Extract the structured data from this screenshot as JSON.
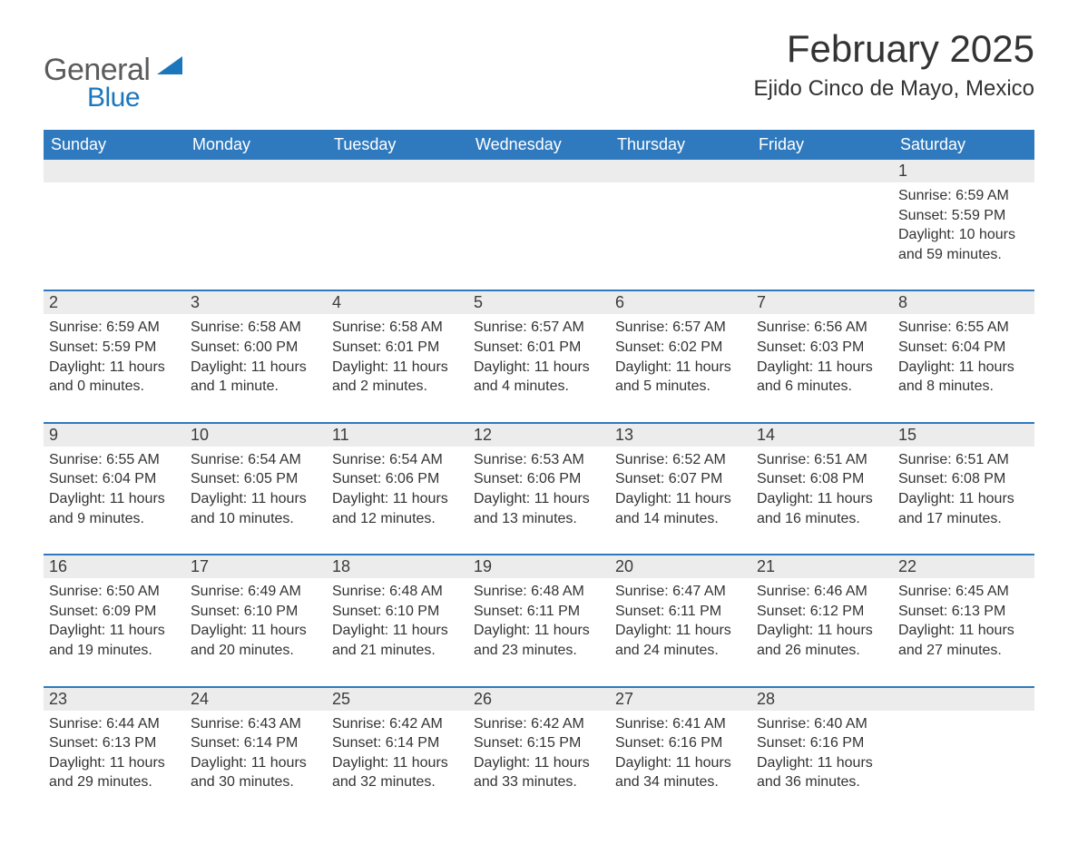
{
  "brand": {
    "general": "General",
    "blue": "Blue"
  },
  "colors": {
    "header_bg": "#2f7abf",
    "header_text": "#ffffff",
    "daynum_bg": "#ececec",
    "rule": "#2f7abf",
    "body_text": "#333333",
    "logo_gray": "#5b5b5b",
    "logo_blue": "#1b77bc",
    "background": "#ffffff"
  },
  "typography": {
    "month_title_pt": 42,
    "location_pt": 24,
    "dow_pt": 18,
    "daynum_pt": 18,
    "detail_pt": 16
  },
  "layout": {
    "columns": 7,
    "weeks": 5
  },
  "month_title": "February 2025",
  "location": "Ejido Cinco de Mayo, Mexico",
  "days_of_week": [
    "Sunday",
    "Monday",
    "Tuesday",
    "Wednesday",
    "Thursday",
    "Friday",
    "Saturday"
  ],
  "weeks": [
    [
      null,
      null,
      null,
      null,
      null,
      null,
      {
        "n": "1",
        "sunrise": "Sunrise: 6:59 AM",
        "sunset": "Sunset: 5:59 PM",
        "daylight": "Daylight: 10 hours and 59 minutes."
      }
    ],
    [
      {
        "n": "2",
        "sunrise": "Sunrise: 6:59 AM",
        "sunset": "Sunset: 5:59 PM",
        "daylight": "Daylight: 11 hours and 0 minutes."
      },
      {
        "n": "3",
        "sunrise": "Sunrise: 6:58 AM",
        "sunset": "Sunset: 6:00 PM",
        "daylight": "Daylight: 11 hours and 1 minute."
      },
      {
        "n": "4",
        "sunrise": "Sunrise: 6:58 AM",
        "sunset": "Sunset: 6:01 PM",
        "daylight": "Daylight: 11 hours and 2 minutes."
      },
      {
        "n": "5",
        "sunrise": "Sunrise: 6:57 AM",
        "sunset": "Sunset: 6:01 PM",
        "daylight": "Daylight: 11 hours and 4 minutes."
      },
      {
        "n": "6",
        "sunrise": "Sunrise: 6:57 AM",
        "sunset": "Sunset: 6:02 PM",
        "daylight": "Daylight: 11 hours and 5 minutes."
      },
      {
        "n": "7",
        "sunrise": "Sunrise: 6:56 AM",
        "sunset": "Sunset: 6:03 PM",
        "daylight": "Daylight: 11 hours and 6 minutes."
      },
      {
        "n": "8",
        "sunrise": "Sunrise: 6:55 AM",
        "sunset": "Sunset: 6:04 PM",
        "daylight": "Daylight: 11 hours and 8 minutes."
      }
    ],
    [
      {
        "n": "9",
        "sunrise": "Sunrise: 6:55 AM",
        "sunset": "Sunset: 6:04 PM",
        "daylight": "Daylight: 11 hours and 9 minutes."
      },
      {
        "n": "10",
        "sunrise": "Sunrise: 6:54 AM",
        "sunset": "Sunset: 6:05 PM",
        "daylight": "Daylight: 11 hours and 10 minutes."
      },
      {
        "n": "11",
        "sunrise": "Sunrise: 6:54 AM",
        "sunset": "Sunset: 6:06 PM",
        "daylight": "Daylight: 11 hours and 12 minutes."
      },
      {
        "n": "12",
        "sunrise": "Sunrise: 6:53 AM",
        "sunset": "Sunset: 6:06 PM",
        "daylight": "Daylight: 11 hours and 13 minutes."
      },
      {
        "n": "13",
        "sunrise": "Sunrise: 6:52 AM",
        "sunset": "Sunset: 6:07 PM",
        "daylight": "Daylight: 11 hours and 14 minutes."
      },
      {
        "n": "14",
        "sunrise": "Sunrise: 6:51 AM",
        "sunset": "Sunset: 6:08 PM",
        "daylight": "Daylight: 11 hours and 16 minutes."
      },
      {
        "n": "15",
        "sunrise": "Sunrise: 6:51 AM",
        "sunset": "Sunset: 6:08 PM",
        "daylight": "Daylight: 11 hours and 17 minutes."
      }
    ],
    [
      {
        "n": "16",
        "sunrise": "Sunrise: 6:50 AM",
        "sunset": "Sunset: 6:09 PM",
        "daylight": "Daylight: 11 hours and 19 minutes."
      },
      {
        "n": "17",
        "sunrise": "Sunrise: 6:49 AM",
        "sunset": "Sunset: 6:10 PM",
        "daylight": "Daylight: 11 hours and 20 minutes."
      },
      {
        "n": "18",
        "sunrise": "Sunrise: 6:48 AM",
        "sunset": "Sunset: 6:10 PM",
        "daylight": "Daylight: 11 hours and 21 minutes."
      },
      {
        "n": "19",
        "sunrise": "Sunrise: 6:48 AM",
        "sunset": "Sunset: 6:11 PM",
        "daylight": "Daylight: 11 hours and 23 minutes."
      },
      {
        "n": "20",
        "sunrise": "Sunrise: 6:47 AM",
        "sunset": "Sunset: 6:11 PM",
        "daylight": "Daylight: 11 hours and 24 minutes."
      },
      {
        "n": "21",
        "sunrise": "Sunrise: 6:46 AM",
        "sunset": "Sunset: 6:12 PM",
        "daylight": "Daylight: 11 hours and 26 minutes."
      },
      {
        "n": "22",
        "sunrise": "Sunrise: 6:45 AM",
        "sunset": "Sunset: 6:13 PM",
        "daylight": "Daylight: 11 hours and 27 minutes."
      }
    ],
    [
      {
        "n": "23",
        "sunrise": "Sunrise: 6:44 AM",
        "sunset": "Sunset: 6:13 PM",
        "daylight": "Daylight: 11 hours and 29 minutes."
      },
      {
        "n": "24",
        "sunrise": "Sunrise: 6:43 AM",
        "sunset": "Sunset: 6:14 PM",
        "daylight": "Daylight: 11 hours and 30 minutes."
      },
      {
        "n": "25",
        "sunrise": "Sunrise: 6:42 AM",
        "sunset": "Sunset: 6:14 PM",
        "daylight": "Daylight: 11 hours and 32 minutes."
      },
      {
        "n": "26",
        "sunrise": "Sunrise: 6:42 AM",
        "sunset": "Sunset: 6:15 PM",
        "daylight": "Daylight: 11 hours and 33 minutes."
      },
      {
        "n": "27",
        "sunrise": "Sunrise: 6:41 AM",
        "sunset": "Sunset: 6:16 PM",
        "daylight": "Daylight: 11 hours and 34 minutes."
      },
      {
        "n": "28",
        "sunrise": "Sunrise: 6:40 AM",
        "sunset": "Sunset: 6:16 PM",
        "daylight": "Daylight: 11 hours and 36 minutes."
      },
      null
    ]
  ]
}
